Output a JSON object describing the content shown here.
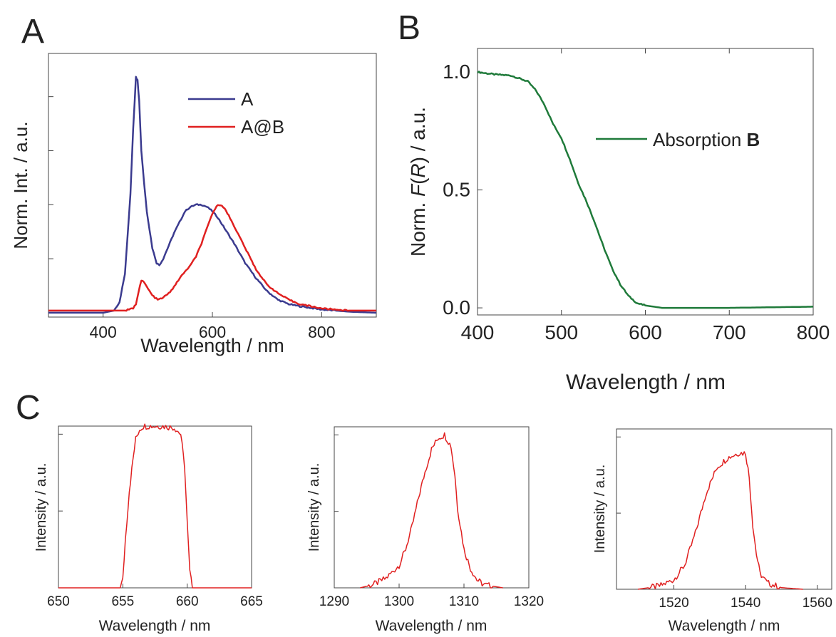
{
  "panel_labels": [
    "A",
    "B",
    "C"
  ],
  "chart_data": [
    {
      "panel": "A",
      "type": "line",
      "xlabel": "Wavelength / nm",
      "ylabel": "Norm. Int. / a.u.",
      "xlim": [
        300,
        900
      ],
      "ylim": [
        -0.02,
        1.2
      ],
      "xticks": [
        400,
        600,
        800
      ],
      "yticks_unlabeled": [
        0,
        0.25,
        0.5,
        0.75,
        1.0
      ],
      "legend": {
        "position": "top-right"
      },
      "series": [
        {
          "name": "A",
          "color": "#3b3b8f",
          "points": [
            [
              300,
              0.0
            ],
            [
              400,
              0.0
            ],
            [
              420,
              0.01
            ],
            [
              430,
              0.05
            ],
            [
              440,
              0.18
            ],
            [
              450,
              0.55
            ],
            [
              455,
              0.85
            ],
            [
              460,
              1.09
            ],
            [
              463,
              1.08
            ],
            [
              466,
              0.98
            ],
            [
              470,
              0.75
            ],
            [
              475,
              0.6
            ],
            [
              480,
              0.47
            ],
            [
              490,
              0.3
            ],
            [
              498,
              0.23
            ],
            [
              503,
              0.22
            ],
            [
              510,
              0.25
            ],
            [
              520,
              0.31
            ],
            [
              530,
              0.37
            ],
            [
              540,
              0.42
            ],
            [
              550,
              0.47
            ],
            [
              560,
              0.49
            ],
            [
              570,
              0.5
            ],
            [
              580,
              0.5
            ],
            [
              590,
              0.49
            ],
            [
              600,
              0.47
            ],
            [
              610,
              0.44
            ],
            [
              620,
              0.4
            ],
            [
              640,
              0.32
            ],
            [
              660,
              0.23
            ],
            [
              680,
              0.16
            ],
            [
              700,
              0.1
            ],
            [
              720,
              0.06
            ],
            [
              740,
              0.04
            ],
            [
              760,
              0.03
            ],
            [
              800,
              0.015
            ],
            [
              850,
              0.005
            ],
            [
              900,
              0.0
            ]
          ]
        },
        {
          "name": "A@B",
          "color": "#e02020",
          "points": [
            [
              300,
              0.01
            ],
            [
              440,
              0.01
            ],
            [
              455,
              0.02
            ],
            [
              460,
              0.04
            ],
            [
              465,
              0.1
            ],
            [
              470,
              0.15
            ],
            [
              475,
              0.14
            ],
            [
              480,
              0.12
            ],
            [
              490,
              0.08
            ],
            [
              500,
              0.06
            ],
            [
              510,
              0.07
            ],
            [
              520,
              0.09
            ],
            [
              530,
              0.12
            ],
            [
              540,
              0.16
            ],
            [
              550,
              0.19
            ],
            [
              560,
              0.22
            ],
            [
              570,
              0.26
            ],
            [
              580,
              0.32
            ],
            [
              590,
              0.39
            ],
            [
              600,
              0.46
            ],
            [
              610,
              0.5
            ],
            [
              615,
              0.5
            ],
            [
              620,
              0.49
            ],
            [
              630,
              0.45
            ],
            [
              640,
              0.4
            ],
            [
              660,
              0.3
            ],
            [
              680,
              0.2
            ],
            [
              700,
              0.13
            ],
            [
              720,
              0.09
            ],
            [
              740,
              0.06
            ],
            [
              760,
              0.04
            ],
            [
              800,
              0.02
            ],
            [
              850,
              0.01
            ],
            [
              900,
              0.01
            ]
          ]
        }
      ]
    },
    {
      "panel": "B",
      "type": "line",
      "xlabel": "Wavelength / nm",
      "ylabel_parts": [
        "Norm. ",
        "F",
        "(",
        "R",
        ") / a.u."
      ],
      "xlim": [
        400,
        800
      ],
      "ylim": [
        -0.03,
        1.1
      ],
      "xticks": [
        400,
        500,
        600,
        700,
        800
      ],
      "yticks": [
        0.0,
        0.5,
        1.0
      ],
      "ytick_labels": [
        "0.0",
        "0.5",
        "1.0"
      ],
      "legend": {
        "position": "center-right",
        "label_parts": [
          "Absorption ",
          "B"
        ]
      },
      "series": [
        {
          "color": "#1f7a3a",
          "points": [
            [
              400,
              1.0
            ],
            [
              420,
              0.99
            ],
            [
              440,
              0.985
            ],
            [
              460,
              0.96
            ],
            [
              470,
              0.92
            ],
            [
              480,
              0.86
            ],
            [
              490,
              0.78
            ],
            [
              500,
              0.72
            ],
            [
              510,
              0.63
            ],
            [
              520,
              0.53
            ],
            [
              530,
              0.45
            ],
            [
              540,
              0.36
            ],
            [
              550,
              0.26
            ],
            [
              560,
              0.17
            ],
            [
              570,
              0.1
            ],
            [
              580,
              0.05
            ],
            [
              590,
              0.02
            ],
            [
              600,
              0.01
            ],
            [
              620,
              0.0
            ],
            [
              700,
              0.0
            ],
            [
              800,
              0.005
            ]
          ]
        }
      ]
    },
    {
      "panel": "C1",
      "type": "line",
      "xlabel": "Wavelength / nm",
      "ylabel": "Intensity / a.u.",
      "xlim": [
        650,
        665
      ],
      "ylim": [
        0,
        1.0
      ],
      "xticks": [
        650,
        655,
        660,
        665
      ],
      "series": [
        {
          "color": "#e02020",
          "points": [
            [
              650,
              0
            ],
            [
              654.8,
              0
            ],
            [
              655,
              0.05
            ],
            [
              655.2,
              0.3
            ],
            [
              655.5,
              0.6
            ],
            [
              655.8,
              0.8
            ],
            [
              656,
              0.92
            ],
            [
              656.3,
              0.98
            ],
            [
              656.6,
              1.0
            ],
            [
              658,
              1.0
            ],
            [
              659,
              0.99
            ],
            [
              659.5,
              0.95
            ],
            [
              659.8,
              0.75
            ],
            [
              660,
              0.4
            ],
            [
              660.2,
              0.1
            ],
            [
              660.4,
              0
            ],
            [
              665,
              0
            ]
          ]
        }
      ]
    },
    {
      "panel": "C2",
      "type": "line",
      "xlabel": "Wavelength / nm",
      "ylabel": "Intensity / a.u.",
      "xlim": [
        1290,
        1320
      ],
      "ylim": [
        0,
        1.0
      ],
      "xticks": [
        1290,
        1300,
        1310,
        1320
      ],
      "series": [
        {
          "color": "#e02020",
          "points": [
            [
              1294,
              0
            ],
            [
              1296,
              0.02
            ],
            [
              1298,
              0.06
            ],
            [
              1300,
              0.14
            ],
            [
              1301,
              0.24
            ],
            [
              1302,
              0.38
            ],
            [
              1303,
              0.56
            ],
            [
              1304,
              0.72
            ],
            [
              1305,
              0.86
            ],
            [
              1306,
              0.93
            ],
            [
              1307,
              0.95
            ],
            [
              1308,
              0.88
            ],
            [
              1308.6,
              0.7
            ],
            [
              1309,
              0.5
            ],
            [
              1310,
              0.24
            ],
            [
              1311,
              0.12
            ],
            [
              1312,
              0.05
            ],
            [
              1313,
              0.02
            ],
            [
              1316,
              0
            ]
          ]
        }
      ]
    },
    {
      "panel": "C3",
      "type": "line",
      "xlabel": "Wavelength / nm",
      "ylabel": "Intensity / a.u.",
      "xlim": [
        1504,
        1564
      ],
      "ylim": [
        0,
        1.0
      ],
      "xticks": [
        1520,
        1540,
        1560
      ],
      "series": [
        {
          "color": "#e02020",
          "points": [
            [
              1510,
              0
            ],
            [
              1516,
              0.02
            ],
            [
              1520,
              0.06
            ],
            [
              1523,
              0.15
            ],
            [
              1526,
              0.35
            ],
            [
              1529,
              0.6
            ],
            [
              1532,
              0.76
            ],
            [
              1535,
              0.82
            ],
            [
              1538,
              0.85
            ],
            [
              1540,
              0.85
            ],
            [
              1541,
              0.7
            ],
            [
              1542,
              0.4
            ],
            [
              1543,
              0.22
            ],
            [
              1544,
              0.1
            ],
            [
              1546,
              0.04
            ],
            [
              1550,
              0.01
            ],
            [
              1556,
              0
            ]
          ]
        }
      ]
    }
  ]
}
